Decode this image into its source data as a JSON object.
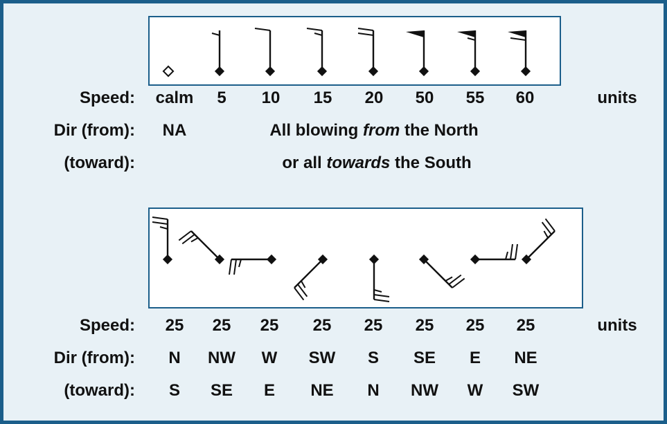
{
  "top": {
    "speed_label": "Speed:",
    "dir_from_label": "Dir (from):",
    "dir_toward_label": "(toward):",
    "units": "units",
    "speeds": [
      "calm",
      "5",
      "10",
      "15",
      "20",
      "50",
      "55",
      "60"
    ],
    "dir_from_na": "NA",
    "north_line": {
      "pre": "All blowing ",
      "em": "from",
      "post": " the North"
    },
    "south_line": {
      "pre": "or all ",
      "em": "towards",
      "post": " the South"
    }
  },
  "bottom": {
    "speed_label": "Speed:",
    "dir_from_label": "Dir (from):",
    "dir_toward_label": "(toward):",
    "units": "units",
    "speeds": [
      "25",
      "25",
      "25",
      "25",
      "25",
      "25",
      "25",
      "25"
    ],
    "dir_from": [
      "N",
      "NW",
      "W",
      "SW",
      "S",
      "SE",
      "E",
      "NE"
    ],
    "dir_toward": [
      "S",
      "SE",
      "E",
      "NE",
      "N",
      "NW",
      "W",
      "SW"
    ]
  }
}
